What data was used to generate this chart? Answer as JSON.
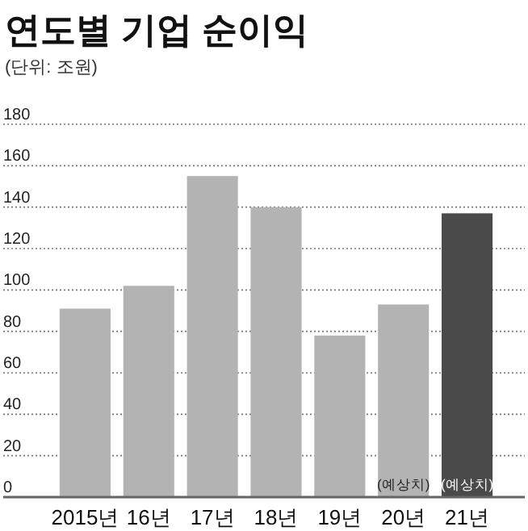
{
  "chart_data": {
    "type": "bar",
    "title": "연도별 기업 순이익",
    "subtitle": "(단위: 조원)",
    "categories": [
      "2015년",
      "16년",
      "17년",
      "18년",
      "19년",
      "20년",
      "21년"
    ],
    "values": [
      91,
      102,
      155,
      140,
      78,
      93,
      137
    ],
    "colors": [
      "#b3b3b3",
      "#b3b3b3",
      "#b3b3b3",
      "#b3b3b3",
      "#b3b3b3",
      "#b3b3b3",
      "#4a4a4a"
    ],
    "ylim": [
      0,
      180
    ],
    "yticks": [
      0,
      20,
      40,
      60,
      80,
      100,
      120,
      140,
      160,
      180
    ],
    "grid": "y",
    "annotations": [
      "(예상치)",
      "(예상치)"
    ]
  }
}
